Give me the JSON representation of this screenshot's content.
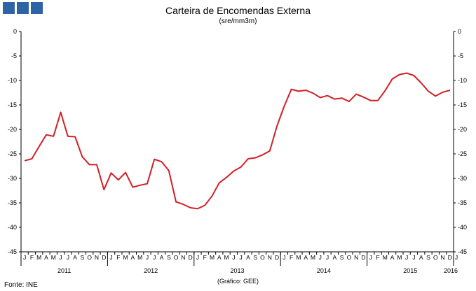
{
  "header": {
    "title": "Carteira de Encomendas  Externa",
    "subtitle": "(sre/mm3m)"
  },
  "footer": {
    "source": "Fonte: INE",
    "credit": "(Gráfico:  GEE)"
  },
  "colors": {
    "logo": "#2e64a6",
    "line": "#d21f26",
    "axis": "#000000"
  },
  "chart_data": {
    "type": "line",
    "title": "Carteira de Encomendas  Externa",
    "subtitle": "(sre/mm3m)",
    "ylim": [
      -45,
      0
    ],
    "yticks": [
      0,
      -5,
      -10,
      -15,
      -20,
      -25,
      -30,
      -35,
      -40,
      -45
    ],
    "grid": false,
    "month_labels": [
      "J",
      "F",
      "M",
      "A",
      "M",
      "J",
      "J",
      "A",
      "S",
      "O",
      "N",
      "D"
    ],
    "years": [
      "2011",
      "2012",
      "2013",
      "2014",
      "2015",
      "2016"
    ],
    "start": "2011-01",
    "series": [
      {
        "values": [
          -26.4,
          -26.0,
          -23.5,
          -21.1,
          -21.4,
          -16.5,
          -21.4,
          -21.5,
          -25.6,
          -27.2,
          -27.2,
          -32.3,
          -28.9,
          -30.3,
          -28.8,
          -31.8,
          -31.4,
          -31.1,
          -26.1,
          -26.6,
          -28.4,
          -34.8,
          -35.3,
          -36.0,
          -36.2,
          -35.5,
          -33.6,
          -30.9,
          -29.8,
          -28.5,
          -27.7,
          -26.0,
          -25.8,
          -25.2,
          -24.4,
          -19.3,
          -15.3,
          -11.8,
          -12.2,
          -12.0,
          -12.6,
          -13.5,
          -13.1,
          -13.8,
          -13.6,
          -14.3,
          -12.8,
          -13.4,
          -14.1,
          -14.1,
          -12.1,
          -9.7,
          -8.8,
          -8.5,
          -9.0,
          -10.5,
          -12.2,
          -13.2,
          -12.4,
          -12.0
        ]
      }
    ]
  }
}
